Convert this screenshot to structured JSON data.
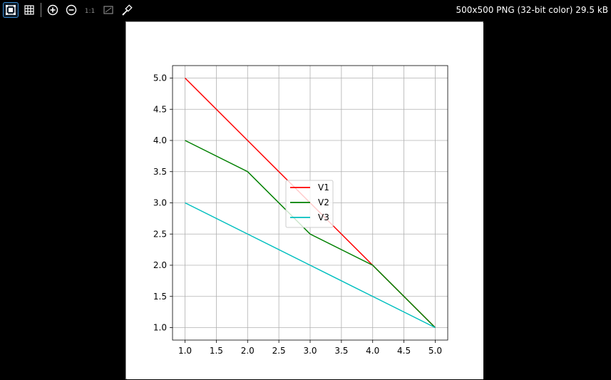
{
  "toolbar": {
    "buttons": [
      {
        "name": "fit-window",
        "icon": "fit-window-icon",
        "active": true
      },
      {
        "name": "grid",
        "icon": "grid-icon"
      },
      {
        "name": "zoom-in",
        "icon": "zoom-in-icon"
      },
      {
        "name": "zoom-out",
        "icon": "zoom-out-icon"
      },
      {
        "name": "actual-size",
        "icon": "actual-size-icon",
        "label": "1:1"
      },
      {
        "name": "background",
        "icon": "background-icon"
      },
      {
        "name": "color-picker",
        "icon": "eyedropper-icon"
      }
    ],
    "accent": "#3a8fd8"
  },
  "image_info": "500x500 PNG (32-bit color) 29.5 kB",
  "chart_data": {
    "type": "line",
    "title": "",
    "xlabel": "",
    "ylabel": "",
    "x": [
      1,
      2,
      3,
      4,
      5
    ],
    "xlim": [
      0.8,
      5.2
    ],
    "ylim": [
      0.8,
      5.2
    ],
    "x_ticks": [
      1.0,
      1.5,
      2.0,
      2.5,
      3.0,
      3.5,
      4.0,
      4.5,
      5.0
    ],
    "y_ticks": [
      1.0,
      1.5,
      2.0,
      2.5,
      3.0,
      3.5,
      4.0,
      4.5,
      5.0
    ],
    "x_tick_labels": [
      "1.0",
      "1.5",
      "2.0",
      "2.5",
      "3.0",
      "3.5",
      "4.0",
      "4.5",
      "5.0"
    ],
    "y_tick_labels": [
      "1.0",
      "1.5",
      "2.0",
      "2.5",
      "3.0",
      "3.5",
      "4.0",
      "4.5",
      "5.0"
    ],
    "grid": true,
    "legend_position": "center",
    "series": [
      {
        "name": "V1",
        "values": [
          5,
          4,
          3,
          2,
          1
        ],
        "color": "#ff0000"
      },
      {
        "name": "V2",
        "values": [
          4,
          3.5,
          2.5,
          2,
          1
        ],
        "color": "#008000"
      },
      {
        "name": "V3",
        "values": [
          3,
          2.5,
          2,
          1.5,
          1
        ],
        "color": "#00bfbf"
      }
    ]
  }
}
